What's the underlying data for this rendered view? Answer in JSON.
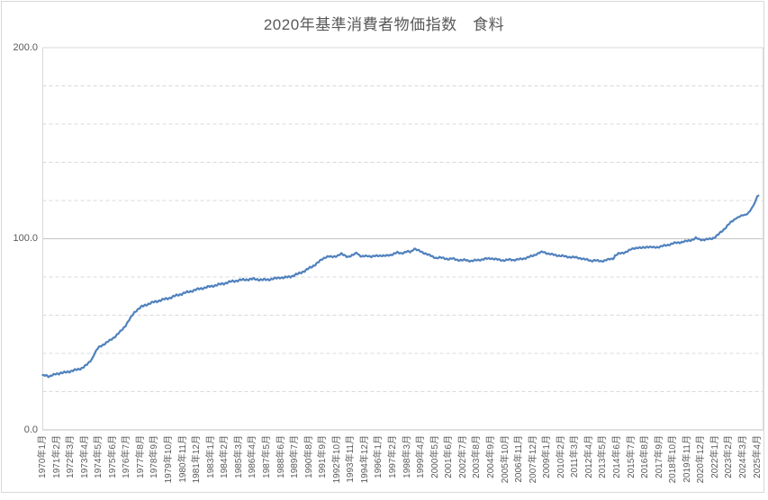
{
  "chart_data": {
    "type": "line",
    "title": "2020年基準消費者物価指数　食料",
    "grid": "horizontal, minor dashed every 20, major solid every 100",
    "legend": "none",
    "y_axis": {
      "min": 0,
      "max": 200,
      "major_interval": 100,
      "minor_interval": 20,
      "ticks": [
        {
          "label": "0.0",
          "value": 0
        },
        {
          "label": "100.0",
          "value": 100
        },
        {
          "label": "200.0",
          "value": 200
        }
      ]
    },
    "x_axis": {
      "unit": "month",
      "start": "1970年1月",
      "end": "2025年5月",
      "label_every_n_months": 13,
      "tick_labels": [
        "1970年1月",
        "1971年2月",
        "1972年3月",
        "1973年4月",
        "1974年5月",
        "1975年6月",
        "1976年7月",
        "1977年8月",
        "1978年9月",
        "1979年10月",
        "1980年11月",
        "1981年12月",
        "1983年1月",
        "1984年2月",
        "1985年3月",
        "1986年4月",
        "1987年5月",
        "1988年6月",
        "1989年7月",
        "1990年8月",
        "1991年9月",
        "1992年10月",
        "1993年11月",
        "1994年12月",
        "1996年1月",
        "1997年2月",
        "1998年3月",
        "1999年4月",
        "2000年5月",
        "2001年6月",
        "2002年7月",
        "2003年8月",
        "2004年9月",
        "2005年10月",
        "2006年11月",
        "2007年12月",
        "2009年1月",
        "2010年2月",
        "2011年3月",
        "2012年4月",
        "2013年5月",
        "2014年6月",
        "2015年7月",
        "2016年8月",
        "2017年9月",
        "2018年10月",
        "2019年11月",
        "2020年12月",
        "2022年1月",
        "2023年2月",
        "2024年3月",
        "2025年4月"
      ]
    },
    "series": [
      {
        "name": "食料",
        "color": "#4F81BD",
        "interpolation": "monthly points, linear between anchors (month_index_from_1970_01, index_value)",
        "anchor_points": [
          [
            0,
            28.3
          ],
          [
            3,
            28.7
          ],
          [
            6,
            27.9
          ],
          [
            9,
            28.5
          ],
          [
            12,
            29.3
          ],
          [
            16,
            29.7
          ],
          [
            20,
            29.9
          ],
          [
            24,
            30.5
          ],
          [
            28,
            31.0
          ],
          [
            32,
            31.5
          ],
          [
            36,
            32.3
          ],
          [
            40,
            33.6
          ],
          [
            44,
            35.8
          ],
          [
            46,
            37.5
          ],
          [
            48,
            39.8
          ],
          [
            50,
            41.8
          ],
          [
            52,
            43.2
          ],
          [
            55,
            44.3
          ],
          [
            58,
            45.2
          ],
          [
            61,
            46.3
          ],
          [
            64,
            47.5
          ],
          [
            67,
            48.8
          ],
          [
            70,
            50.3
          ],
          [
            73,
            52.0
          ],
          [
            76,
            54.0
          ],
          [
            79,
            56.5
          ],
          [
            82,
            59.0
          ],
          [
            85,
            61.5
          ],
          [
            88,
            63.0
          ],
          [
            92,
            64.5
          ],
          [
            96,
            65.5
          ],
          [
            100,
            66.3
          ],
          [
            104,
            67.0
          ],
          [
            108,
            67.6
          ],
          [
            112,
            68.2
          ],
          [
            116,
            68.8
          ],
          [
            120,
            69.5
          ],
          [
            124,
            70.3
          ],
          [
            128,
            71.0
          ],
          [
            132,
            71.7
          ],
          [
            136,
            72.3
          ],
          [
            140,
            73.0
          ],
          [
            144,
            73.6
          ],
          [
            148,
            74.1
          ],
          [
            152,
            74.6
          ],
          [
            156,
            75.1
          ],
          [
            160,
            75.6
          ],
          [
            164,
            76.1
          ],
          [
            168,
            76.6
          ],
          [
            172,
            77.2
          ],
          [
            176,
            77.7
          ],
          [
            180,
            78.1
          ],
          [
            184,
            78.4
          ],
          [
            188,
            78.6
          ],
          [
            192,
            78.8
          ],
          [
            196,
            78.9
          ],
          [
            200,
            78.7
          ],
          [
            204,
            78.5
          ],
          [
            208,
            78.6
          ],
          [
            212,
            78.9
          ],
          [
            216,
            79.2
          ],
          [
            220,
            79.8
          ],
          [
            224,
            79.6
          ],
          [
            228,
            80.0
          ],
          [
            232,
            80.6
          ],
          [
            236,
            81.4
          ],
          [
            240,
            82.4
          ],
          [
            244,
            83.5
          ],
          [
            248,
            84.8
          ],
          [
            252,
            86.2
          ],
          [
            256,
            87.8
          ],
          [
            259,
            89.2
          ],
          [
            262,
            90.3
          ],
          [
            265,
            90.8
          ],
          [
            268,
            90.4
          ],
          [
            271,
            90.8
          ],
          [
            274,
            91.3
          ],
          [
            277,
            92.0
          ],
          [
            280,
            91.3
          ],
          [
            283,
            90.7
          ],
          [
            286,
            90.9
          ],
          [
            289,
            91.8
          ],
          [
            291,
            92.8
          ],
          [
            293,
            91.8
          ],
          [
            296,
            90.6
          ],
          [
            299,
            90.9
          ],
          [
            302,
            91.1
          ],
          [
            305,
            90.7
          ],
          [
            308,
            90.9
          ],
          [
            311,
            91.1
          ],
          [
            314,
            91.3
          ],
          [
            317,
            91.0
          ],
          [
            320,
            91.2
          ],
          [
            323,
            91.6
          ],
          [
            326,
            92.2
          ],
          [
            329,
            92.7
          ],
          [
            332,
            92.4
          ],
          [
            335,
            92.8
          ],
          [
            338,
            93.3
          ],
          [
            341,
            93.0
          ],
          [
            344,
            94.2
          ],
          [
            345,
            94.9
          ],
          [
            347,
            94.3
          ],
          [
            350,
            93.4
          ],
          [
            353,
            92.7
          ],
          [
            356,
            92.2
          ],
          [
            359,
            91.3
          ],
          [
            362,
            90.5
          ],
          [
            365,
            90.0
          ],
          [
            368,
            90.2
          ],
          [
            371,
            89.9
          ],
          [
            374,
            89.6
          ],
          [
            377,
            89.4
          ],
          [
            380,
            89.6
          ],
          [
            383,
            89.2
          ],
          [
            386,
            88.9
          ],
          [
            389,
            88.7
          ],
          [
            392,
            88.9
          ],
          [
            395,
            88.6
          ],
          [
            398,
            88.4
          ],
          [
            401,
            88.6
          ],
          [
            404,
            88.9
          ],
          [
            407,
            89.1
          ],
          [
            410,
            89.4
          ],
          [
            413,
            89.6
          ],
          [
            416,
            89.8
          ],
          [
            419,
            89.4
          ],
          [
            422,
            89.1
          ],
          [
            425,
            88.9
          ],
          [
            428,
            88.7
          ],
          [
            431,
            88.9
          ],
          [
            434,
            89.1
          ],
          [
            437,
            88.9
          ],
          [
            440,
            89.1
          ],
          [
            443,
            89.3
          ],
          [
            446,
            89.6
          ],
          [
            449,
            90.1
          ],
          [
            452,
            90.6
          ],
          [
            455,
            91.1
          ],
          [
            458,
            92.0
          ],
          [
            461,
            92.7
          ],
          [
            464,
            93.1
          ],
          [
            467,
            92.6
          ],
          [
            470,
            92.1
          ],
          [
            473,
            91.7
          ],
          [
            476,
            91.4
          ],
          [
            479,
            91.2
          ],
          [
            482,
            91.0
          ],
          [
            485,
            90.7
          ],
          [
            488,
            90.5
          ],
          [
            491,
            90.4
          ],
          [
            494,
            90.2
          ],
          [
            497,
            90.0
          ],
          [
            500,
            89.7
          ],
          [
            503,
            89.2
          ],
          [
            506,
            88.9
          ],
          [
            509,
            88.5
          ],
          [
            512,
            88.7
          ],
          [
            515,
            88.4
          ],
          [
            518,
            88.3
          ],
          [
            521,
            88.6
          ],
          [
            524,
            89.0
          ],
          [
            527,
            89.4
          ],
          [
            530,
            89.8
          ],
          [
            531,
            91.2
          ],
          [
            534,
            92.1
          ],
          [
            537,
            92.4
          ],
          [
            540,
            92.9
          ],
          [
            543,
            93.6
          ],
          [
            546,
            94.4
          ],
          [
            549,
            95.1
          ],
          [
            552,
            95.4
          ],
          [
            555,
            95.1
          ],
          [
            558,
            95.4
          ],
          [
            561,
            95.9
          ],
          [
            564,
            95.6
          ],
          [
            567,
            95.4
          ],
          [
            570,
            95.6
          ],
          [
            573,
            95.9
          ],
          [
            576,
            96.3
          ],
          [
            579,
            96.6
          ],
          [
            582,
            97.1
          ],
          [
            585,
            97.6
          ],
          [
            588,
            97.9
          ],
          [
            591,
            98.1
          ],
          [
            594,
            98.4
          ],
          [
            597,
            98.7
          ],
          [
            600,
            99.1
          ],
          [
            603,
            99.6
          ],
          [
            606,
            100.3
          ],
          [
            609,
            99.7
          ],
          [
            612,
            99.5
          ],
          [
            615,
            99.6
          ],
          [
            618,
            99.8
          ],
          [
            621,
            100.1
          ],
          [
            624,
            101.0
          ],
          [
            627,
            102.3
          ],
          [
            630,
            103.8
          ],
          [
            633,
            105.5
          ],
          [
            636,
            107.3
          ],
          [
            639,
            108.8
          ],
          [
            642,
            110.2
          ],
          [
            644,
            111.0
          ],
          [
            646,
            111.4
          ],
          [
            648,
            112.0
          ],
          [
            650,
            112.3
          ],
          [
            652,
            112.6
          ],
          [
            654,
            113.2
          ],
          [
            656,
            114.4
          ],
          [
            658,
            116.0
          ],
          [
            660,
            118.0
          ],
          [
            661,
            119.3
          ],
          [
            662,
            120.8
          ],
          [
            663,
            122.2
          ],
          [
            664,
            122.6
          ]
        ]
      }
    ],
    "colors": {
      "line": "#4F81BD",
      "minor_gridline": "#d9d9d9",
      "major_gridline": "#c4c4c4",
      "axis_line": "#bfbfbf",
      "plot_border": "#d9d9d9",
      "text": "#595959"
    }
  }
}
